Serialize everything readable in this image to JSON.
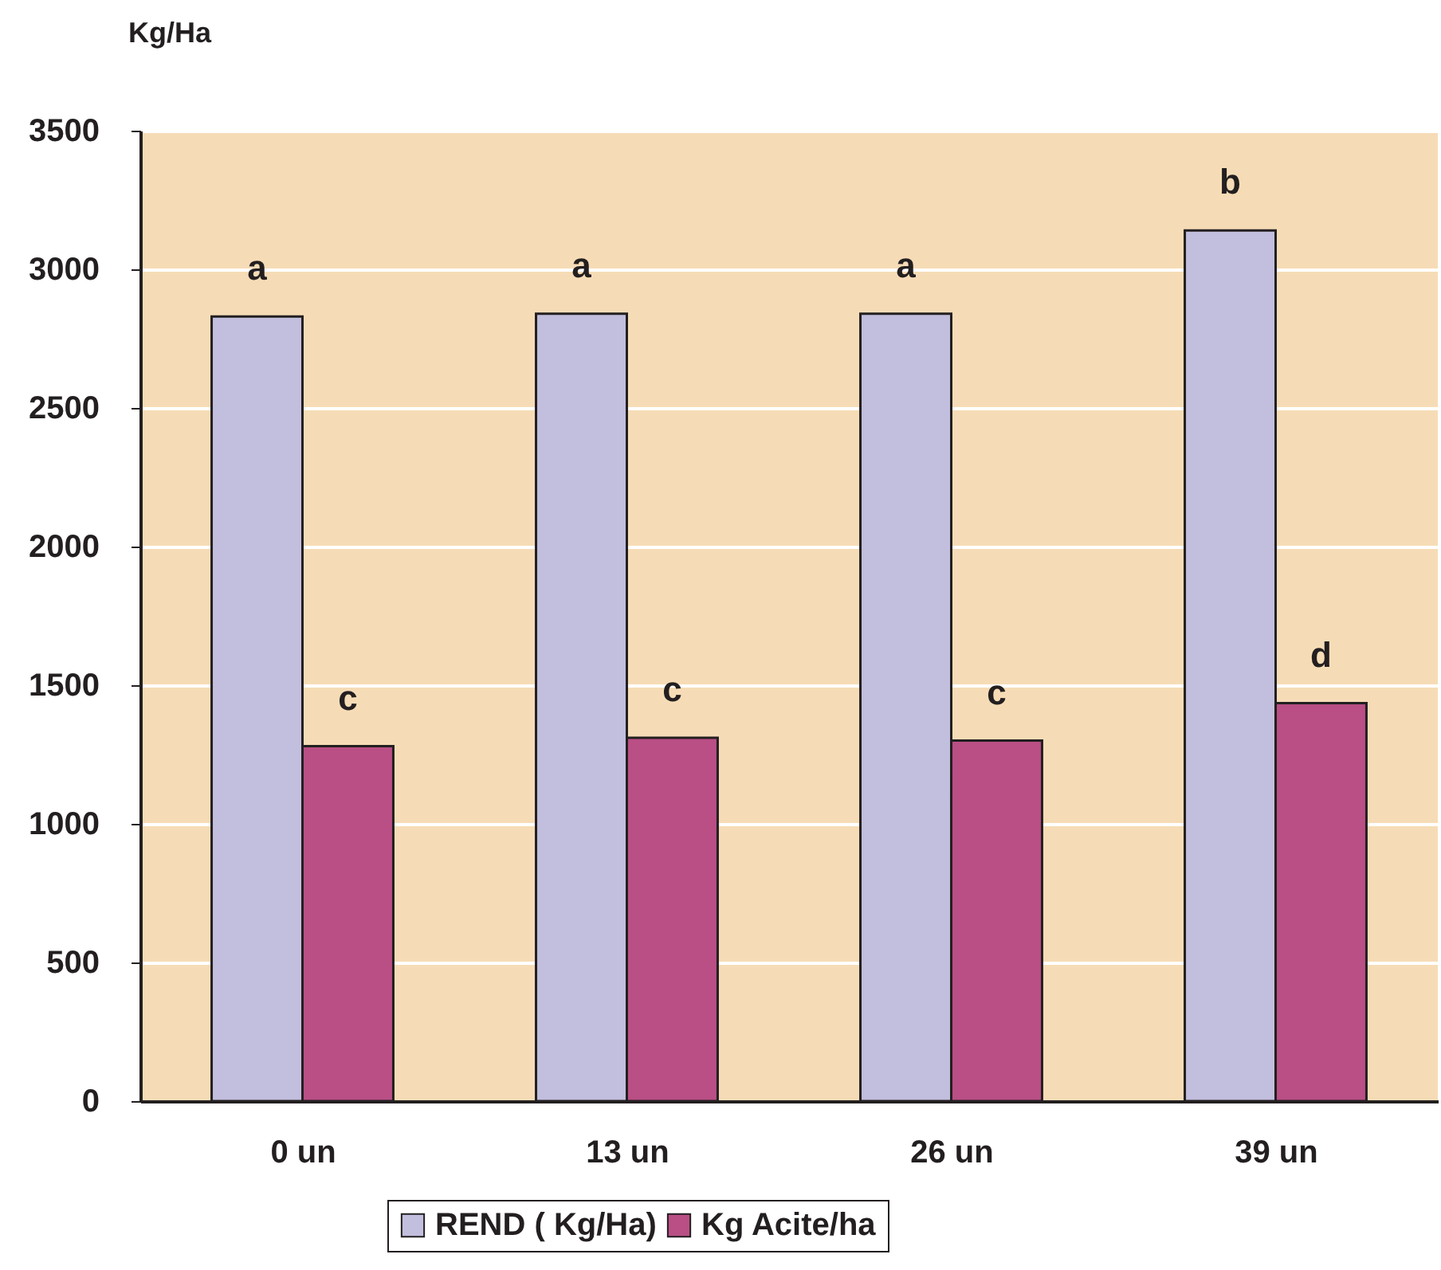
{
  "chart_data": {
    "type": "bar",
    "ylabel": "Kg/Ha",
    "categories": [
      "0 un",
      "13 un",
      "26 un",
      "39 un"
    ],
    "series": [
      {
        "name": "REND ( Kg/Ha)",
        "color": "#c2bedd",
        "values": [
          2830,
          2840,
          2840,
          3140
        ]
      },
      {
        "name": "Kg Acite/ha",
        "color": "#b94f85",
        "values": [
          1280,
          1310,
          1300,
          1435
        ]
      }
    ],
    "ylim": [
      0,
      3500
    ],
    "yticks": [
      0,
      500,
      1000,
      1500,
      2000,
      2500,
      3000,
      3500
    ],
    "grid": "y",
    "legend": "bottom",
    "annotations": [
      {
        "text": "a",
        "x": "0 un",
        "y": 2830
      },
      {
        "text": "a",
        "x": "13 un",
        "y": 2840
      },
      {
        "text": "a",
        "x": "26 un",
        "y": 2840
      },
      {
        "text": "b",
        "x": "39 un",
        "y": 3140
      },
      {
        "text": "c",
        "x": "0 un",
        "y": 1280
      },
      {
        "text": "c",
        "x": "13 un",
        "y": 1310
      },
      {
        "text": "c",
        "x": "26 un",
        "y": 1300
      },
      {
        "text": "d",
        "x": "39 un",
        "y": 1435
      }
    ]
  }
}
